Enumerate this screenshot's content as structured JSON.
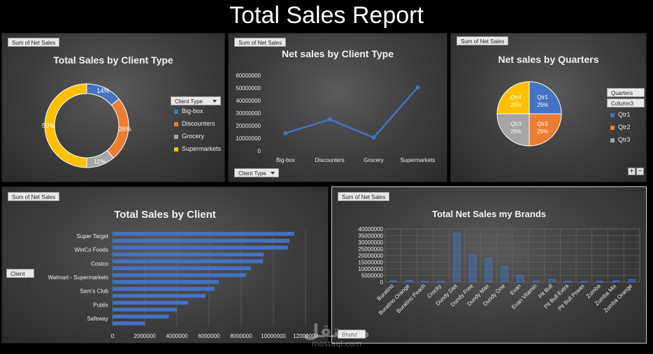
{
  "report_title": "Total Sales Report",
  "watermark": {
    "main": "مستقل",
    "sub": "mostaql.com"
  },
  "colors": {
    "blue": "#4472c4",
    "orange": "#ed7d31",
    "gray": "#a5a5a5",
    "yellow": "#ffc000"
  },
  "chart_data": [
    {
      "id": "client-type-donut",
      "type": "pie",
      "title": "Total Sales by Client Type",
      "field_button": "Sum of Net Sales",
      "legend_title": "Client Type",
      "categories": [
        "Big-box",
        "Discounters",
        "Grocery",
        "Supermarkets"
      ],
      "values": [
        14,
        25,
        11,
        50
      ],
      "labels": [
        "14%",
        "25%",
        "11%",
        "50%"
      ],
      "colors": [
        "#4472c4",
        "#ed7d31",
        "#a5a5a5",
        "#ffc000"
      ],
      "donut": true
    },
    {
      "id": "client-type-line",
      "type": "line",
      "title": "Net sales by Client Type",
      "field_button": "Sum of Net Sales",
      "axis_button": "Client Type",
      "categories": [
        "Big-box",
        "Discounters",
        "Grocery",
        "Supermarkets"
      ],
      "values": [
        14000000,
        25000000,
        10500000,
        50500000
      ],
      "ylim": [
        0,
        60000000
      ],
      "yticks": [
        "0",
        "10000000",
        "20000000",
        "30000000",
        "40000000",
        "50000000",
        "60000000"
      ]
    },
    {
      "id": "quarters-pie",
      "type": "pie",
      "title": "Net sales by Quarters",
      "field_button": "Sum of Net Sales",
      "filter_buttons": [
        "Quarters",
        "Column3"
      ],
      "legend": [
        "Qtr1",
        "Qtr2",
        "Qtr3"
      ],
      "categories": [
        "Qtr1",
        "Qtr2",
        "Qtr3",
        "Qtr4"
      ],
      "values": [
        25,
        25,
        25,
        25
      ],
      "labels": [
        "25%",
        "25%",
        "25%",
        "25%"
      ],
      "colors": [
        "#4472c4",
        "#ed7d31",
        "#a5a5a5",
        "#ffc000"
      ]
    },
    {
      "id": "client-bar",
      "type": "bar",
      "orientation": "horizontal",
      "title": "Total Sales by Client",
      "field_button": "Sum of Net Sales",
      "axis_button": "Client",
      "category_labels": [
        "Super Target",
        "WinCo Foods",
        "Costco",
        "Walmart - Supermarkets",
        "Sam's Club",
        "Publix",
        "Safeway"
      ],
      "values": [
        11300000,
        11000000,
        10900000,
        9400000,
        9350000,
        8600000,
        8300000,
        6600000,
        6350000,
        5800000,
        4700000,
        4000000,
        3500000,
        2000000
      ],
      "xlim": [
        0,
        12000000
      ],
      "xticks": [
        "0",
        "2000000",
        "4000000",
        "6000000",
        "8000000",
        "10000000",
        "12000000"
      ]
    },
    {
      "id": "brand-column",
      "type": "bar",
      "title": "Total Net Sales my Brands",
      "field_button": "Sum of Net Sales",
      "axis_button": "Brand",
      "categories": [
        "Buratino",
        "Buratino Orange",
        "Buratino Peach",
        "Crocky",
        "Dundy Diet",
        "Dundy Free",
        "Dundy Max",
        "Dundy One",
        "Evan",
        "Evan Vitamin",
        "Pit Bull",
        "Pit Bull Extra",
        "Pit Bull Power",
        "Zumba",
        "Zumba Mix",
        "Zumba Orange"
      ],
      "values": [
        900000,
        1200000,
        400000,
        500000,
        37000000,
        20500000,
        18000000,
        12000000,
        5000000,
        700000,
        2000000,
        600000,
        500000,
        700000,
        1000000,
        1800000
      ],
      "ylim": [
        0,
        40000000
      ],
      "yticks": [
        "0",
        "5000000",
        "10000000",
        "15000000",
        "20000000",
        "25000000",
        "30000000",
        "35000000",
        "40000000"
      ]
    }
  ]
}
